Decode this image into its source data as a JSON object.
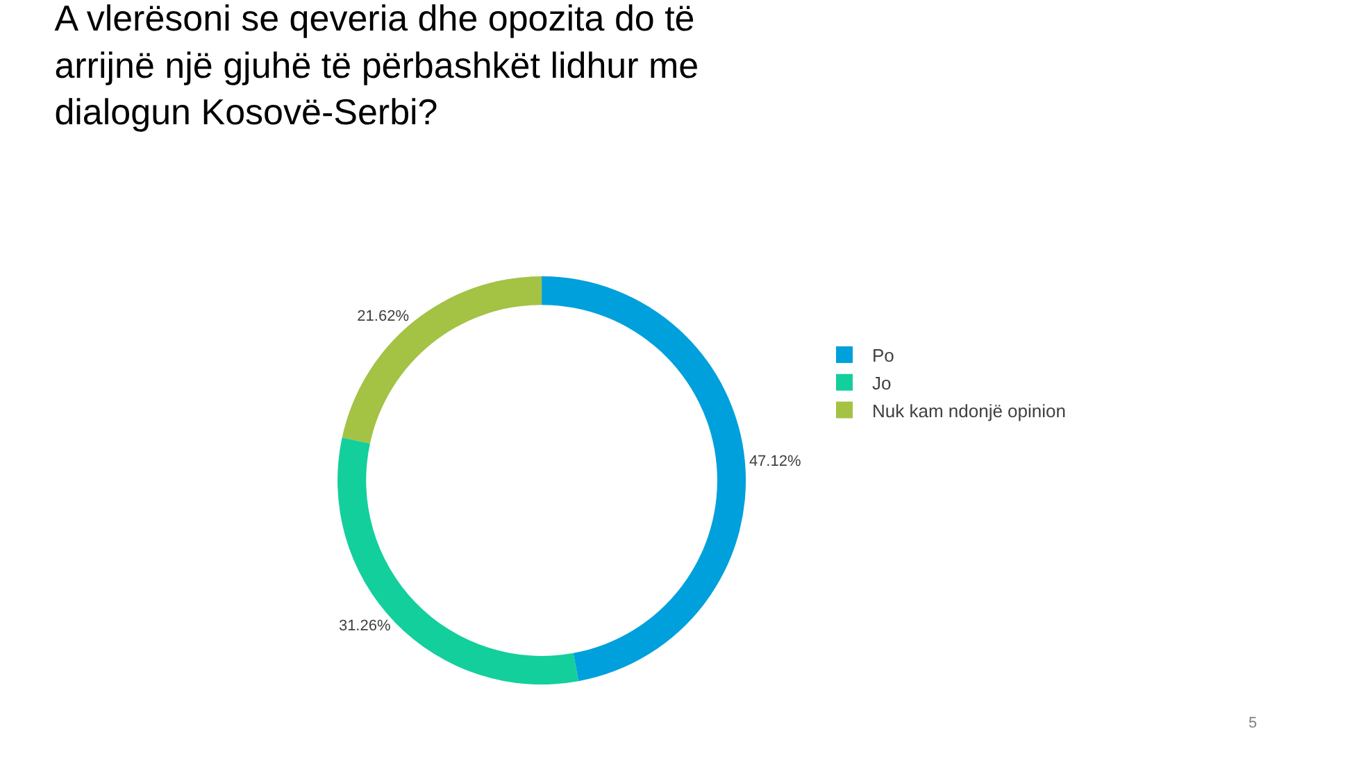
{
  "chart_data": {
    "type": "donut",
    "title": "A vlerësoni se qeveria dhe opozita do të arrijnë një gjuhë të përbashkët lidhur me dialogun Kosovë-Serbi?",
    "categories": [
      "Po",
      "Jo",
      "Nuk kam ndonjë opinion"
    ],
    "values": [
      47.12,
      31.26,
      21.62
    ],
    "colors": [
      "#00a0dc",
      "#13cf9b",
      "#a4c244"
    ],
    "value_labels": [
      "47.12%",
      "31.26%",
      "21.62%"
    ],
    "legend": "right",
    "annotations": [
      "5"
    ]
  }
}
